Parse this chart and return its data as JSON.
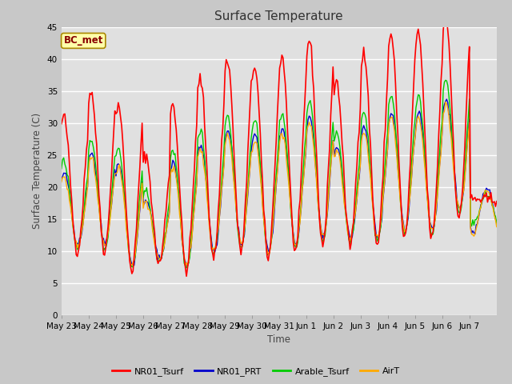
{
  "title": "Surface Temperature",
  "ylabel": "Surface Temperature (C)",
  "xlabel": "Time",
  "annotation": "BC_met",
  "ylim": [
    0,
    45
  ],
  "yticks": [
    0,
    5,
    10,
    15,
    20,
    25,
    30,
    35,
    40,
    45
  ],
  "xtick_labels": [
    "May 23",
    "May 24",
    "May 25",
    "May 26",
    "May 27",
    "May 28",
    "May 29",
    "May 30",
    "May 31",
    "Jun 1",
    "Jun 2",
    "Jun 3",
    "Jun 4",
    "Jun 5",
    "Jun 6",
    "Jun 7"
  ],
  "series": {
    "NR01_Tsurf": {
      "color": "#ff0000",
      "lw": 1.2
    },
    "NR01_PRT": {
      "color": "#0000cc",
      "lw": 1.0
    },
    "Arable_Tsurf": {
      "color": "#00cc00",
      "lw": 1.0
    },
    "AirT": {
      "color": "#ffaa00",
      "lw": 1.0
    }
  },
  "day_peaks": [
    31,
    35,
    33,
    25,
    33,
    37,
    40,
    39,
    40.5,
    43,
    36.5,
    41,
    44,
    44,
    47,
    18
  ],
  "day_mins": [
    10,
    10,
    7,
    8,
    7,
    9,
    10,
    9,
    10,
    11,
    11,
    11,
    12,
    12,
    15,
    18
  ],
  "fig_bg": "#c8c8c8",
  "plot_bg": "#e0e0e0",
  "grid_color": "#ffffff",
  "title_fontsize": 11,
  "legend_fontsize": 8,
  "tick_fontsize": 7.5,
  "label_fontsize": 8.5
}
